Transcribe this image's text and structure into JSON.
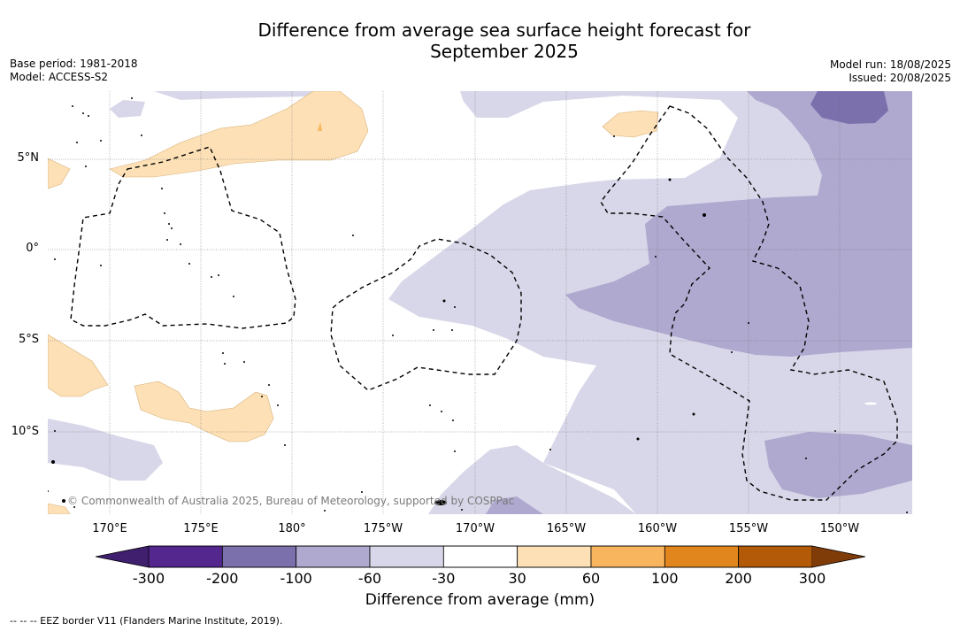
{
  "title_line1": "Difference from average sea surface height forecast for",
  "title_line2": "September 2025",
  "meta_left": {
    "base_period": "Base period: 1981-2018",
    "model": "Model: ACCESS-S2"
  },
  "meta_right": {
    "model_run": "Model run: 18/08/2025",
    "issued": "Issued: 20/08/2025"
  },
  "map": {
    "lat_labels": [
      "5°N",
      "0°",
      "5°S",
      "10°S"
    ],
    "lon_labels": [
      "170°E",
      "175°E",
      "180°",
      "175°W",
      "170°W",
      "165°W",
      "160°W",
      "155°W",
      "150°W"
    ],
    "copyright": "© Commonwealth of Australia 2025, Bureau of Meteorology, supported by COSPPac"
  },
  "colorbar": {
    "ticks": [
      "-300",
      "-200",
      "-100",
      "-60",
      "-30",
      "30",
      "60",
      "100",
      "200",
      "300"
    ],
    "colors": [
      "#3f1f6e",
      "#54278f",
      "#7b6fac",
      "#afa8cf",
      "#d7d7e9",
      "#ffffff",
      "#fde0b6",
      "#f9b55e",
      "#e0861c",
      "#b35a09",
      "#7f3b08"
    ],
    "label": "Difference from average (mm)"
  },
  "legend_eez": "--  --  -- EEZ border V11 (Flanders Marine Institute, 2019)."
}
